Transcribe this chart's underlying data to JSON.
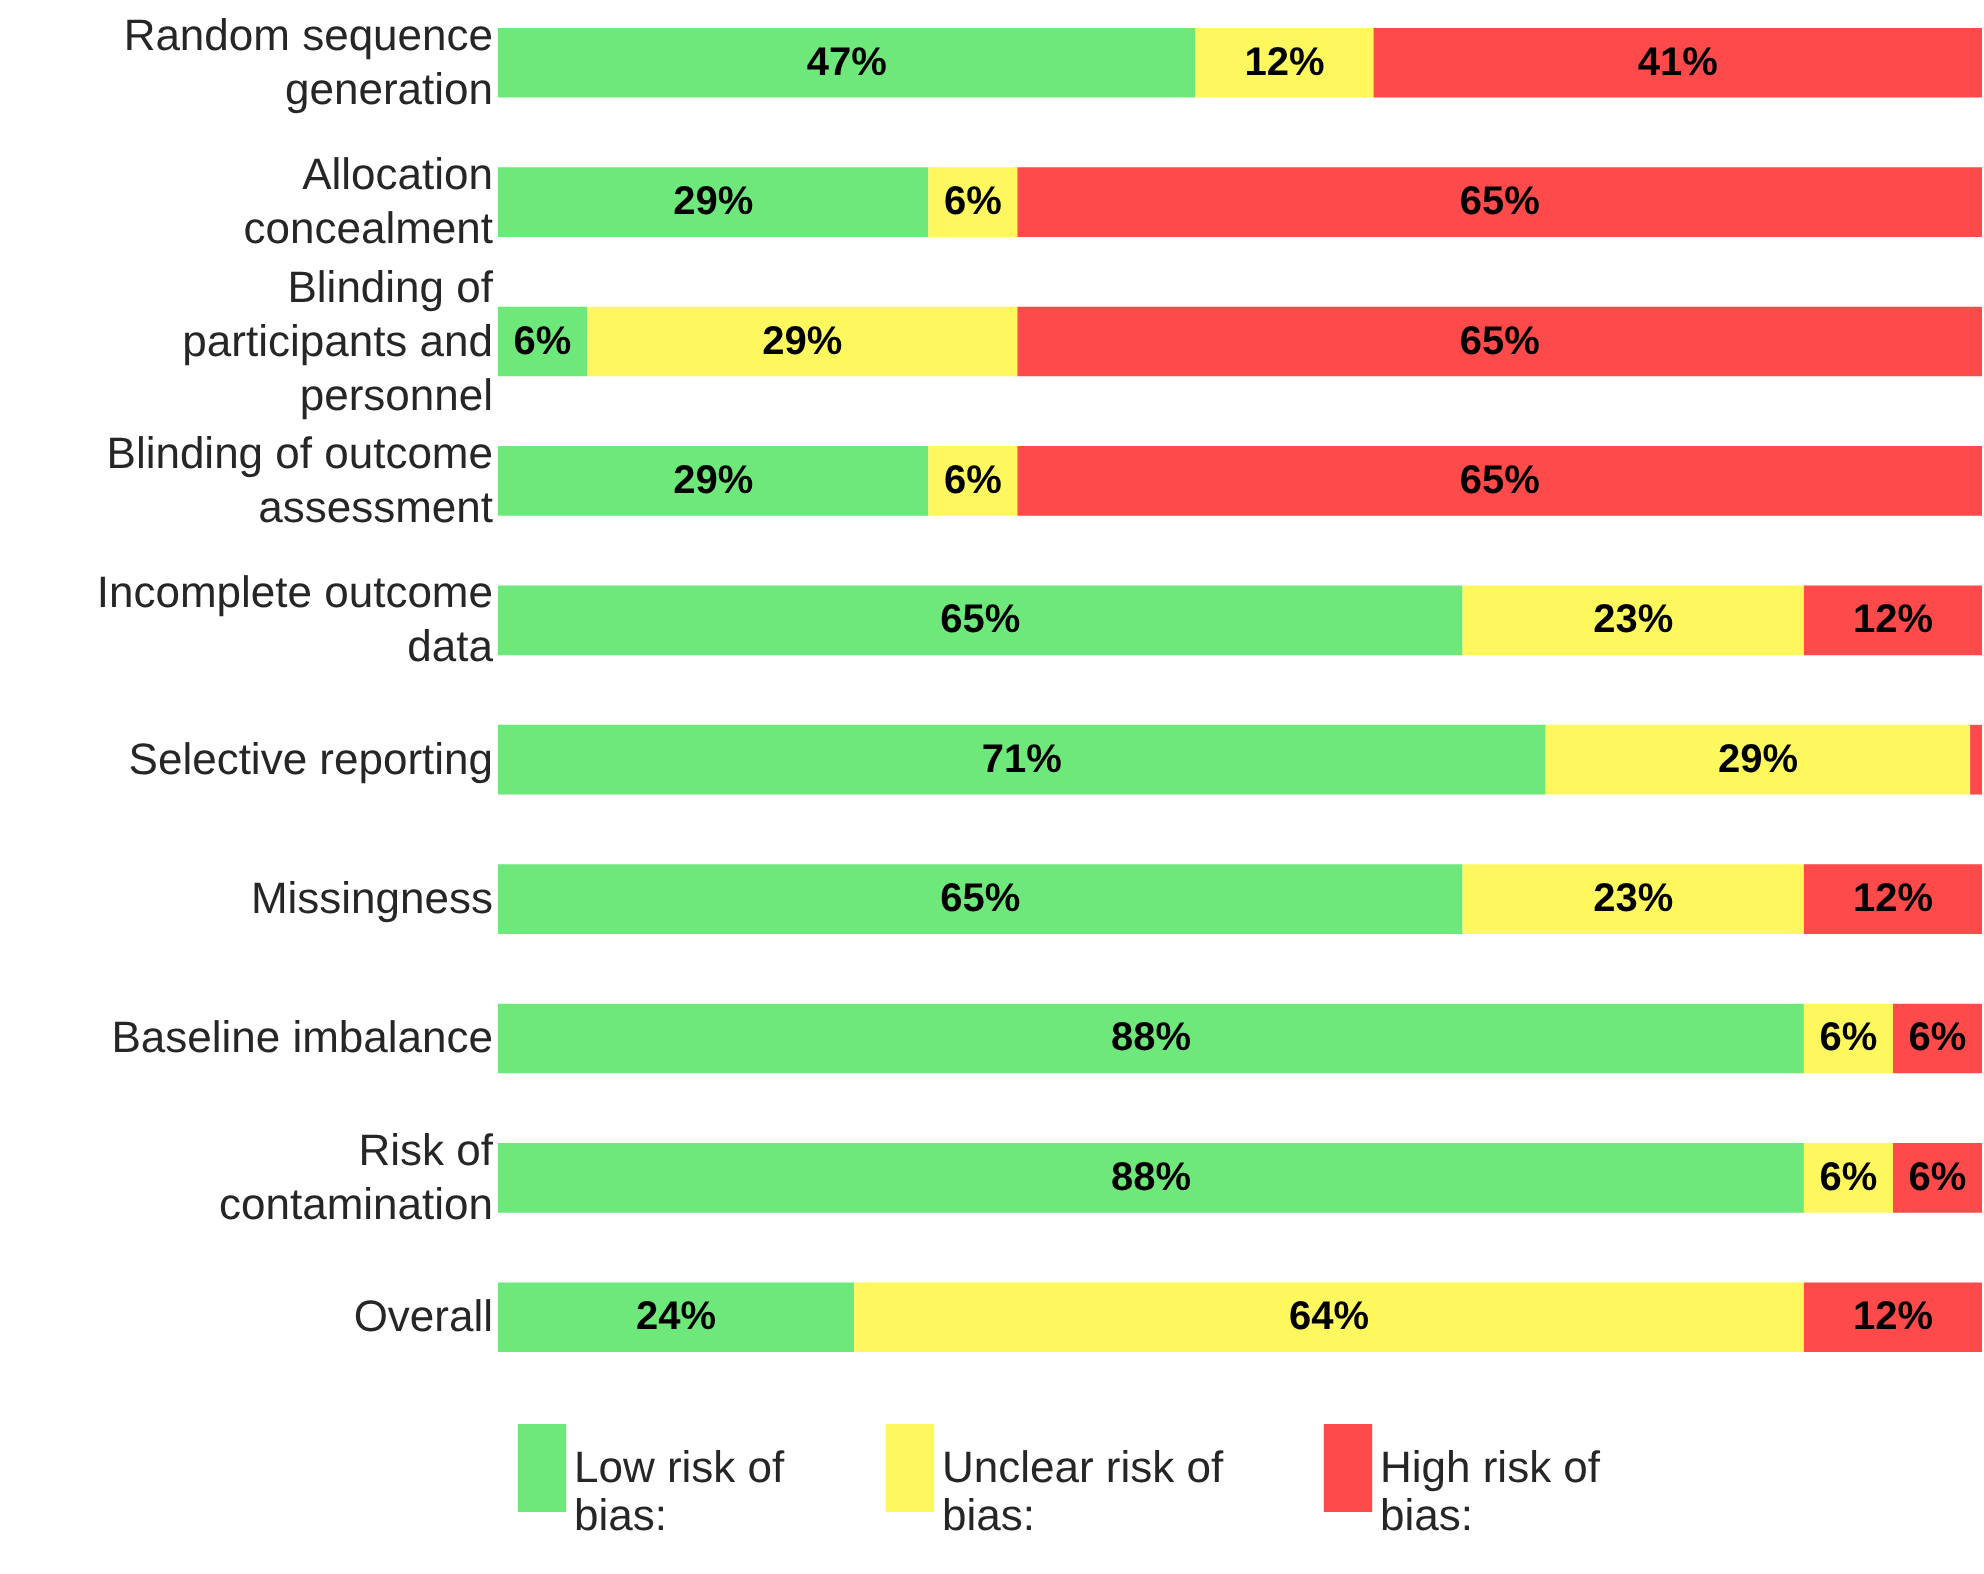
{
  "chart_data": {
    "type": "bar",
    "orientation": "horizontal",
    "stacked": true,
    "categories": [
      "Random sequence generation",
      "Allocation concealment",
      "Blinding of participants and personnel",
      "Blinding of outcome assessment",
      "Incomplete outcome data",
      "Selective reporting",
      "Missingness",
      "Baseline imbalance",
      "Risk of contamination",
      "Overall"
    ],
    "series": [
      {
        "name": "Low risk of bias:",
        "color": "#6ee87a",
        "values": [
          47,
          29,
          6,
          29,
          65,
          70.6,
          65,
          88,
          88,
          24
        ],
        "value_labels": [
          "47%",
          "29%",
          "6%",
          "29%",
          "65%",
          "71%",
          "65%",
          "88%",
          "88%",
          "24%"
        ]
      },
      {
        "name": "Unclear risk of bias:",
        "color": "#fef75e",
        "values": [
          12,
          6,
          29,
          6,
          23,
          28.6,
          23,
          6,
          6,
          64
        ],
        "value_labels": [
          "12%",
          "6%",
          "29%",
          "6%",
          "23%",
          "29%",
          "23%",
          "6%",
          "6%",
          "64%"
        ]
      },
      {
        "name": "High risk of bias:",
        "color": "#fe4a4a",
        "values": [
          41,
          65,
          65,
          65,
          12,
          0.8,
          12,
          6,
          6,
          12
        ],
        "value_labels": [
          "41%",
          "65%",
          "65%",
          "65%",
          "12%",
          null,
          "12%",
          "6%",
          "6%",
          "12%"
        ]
      }
    ],
    "xlim": [
      0,
      100
    ],
    "tick_labels": "y",
    "legend": "bottom"
  }
}
